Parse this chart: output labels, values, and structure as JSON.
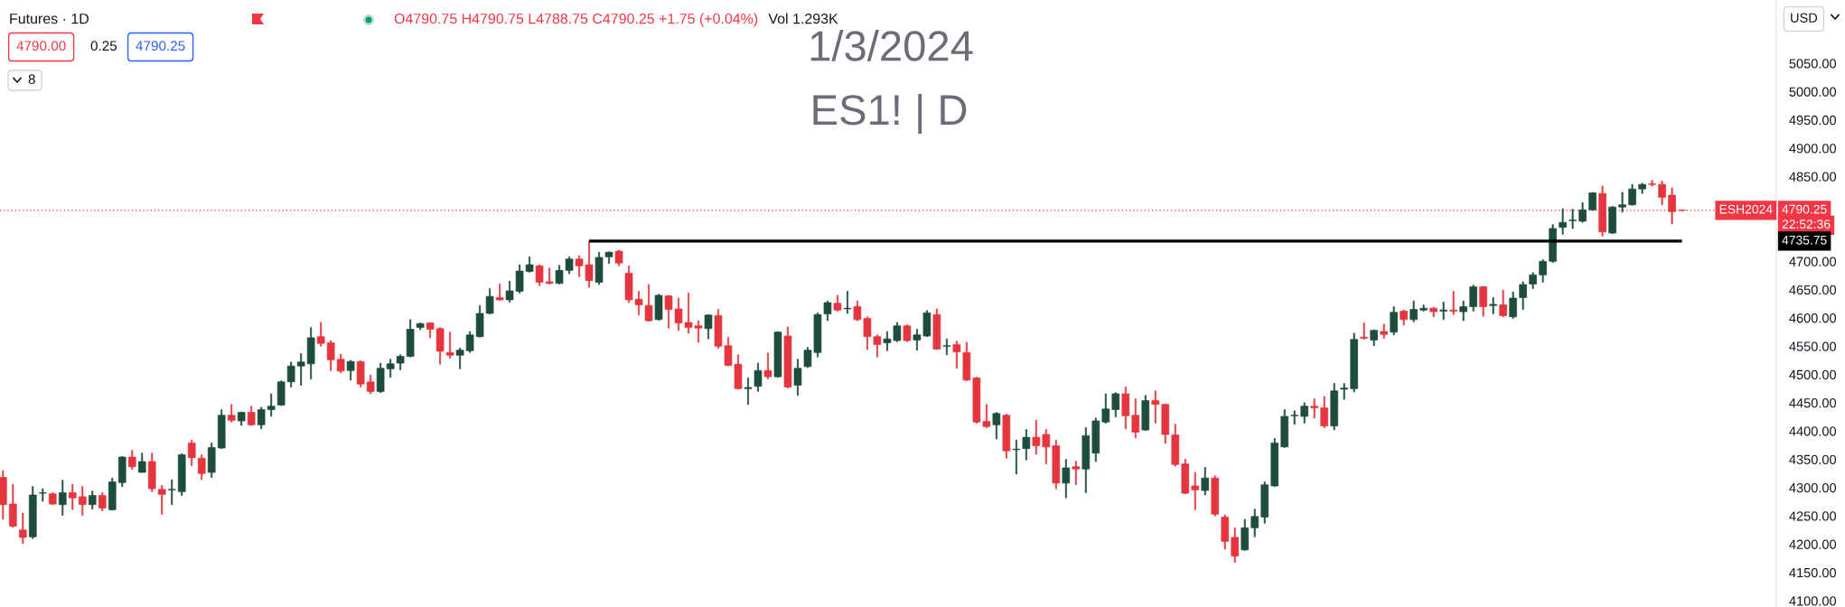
{
  "chart_data": {
    "type": "candlestick",
    "title": "Futures · 1D",
    "annotations": [
      "O4790.75 H4790.75 L4788.75 C4790.25 +1.75 (+0.04%)",
      "Vol 1.293K",
      "4790.00",
      "0.25",
      "4790.25",
      "8",
      "1/3/2024",
      "ES1! | D",
      "USD",
      {
        "text": "ESH2024",
        "y": 4790.25
      },
      "22:52:36",
      "4735.75"
    ],
    "categories": [
      null,
      null,
      null,
      null,
      null,
      null,
      null,
      null,
      null,
      null,
      null,
      null,
      null,
      null,
      null,
      null,
      null,
      null,
      null,
      null,
      null,
      null,
      null,
      null,
      null,
      null,
      null,
      null,
      null,
      null,
      null,
      null,
      null,
      null,
      null,
      null,
      null,
      null,
      null,
      null,
      null,
      null,
      null,
      null,
      null,
      null,
      null,
      null,
      null,
      null,
      null,
      null,
      null,
      null,
      null,
      null,
      null,
      null,
      null,
      null,
      null,
      null,
      null,
      null,
      null,
      null,
      null,
      null,
      null,
      null,
      null,
      null,
      null,
      null,
      null,
      null,
      null,
      null,
      null,
      null,
      null,
      null,
      null,
      null,
      null,
      null,
      null,
      null,
      null,
      null,
      null,
      null,
      null,
      null,
      null,
      null,
      null,
      null,
      null,
      null,
      null,
      null,
      null,
      null,
      null,
      null,
      null,
      null,
      null,
      null,
      null,
      null,
      null,
      null,
      null,
      null,
      null,
      null,
      null,
      null,
      null,
      null,
      null,
      null,
      null,
      null,
      null,
      null,
      null,
      null,
      null,
      null,
      null,
      null,
      null,
      null,
      null,
      null,
      null,
      null,
      null,
      null,
      null,
      null,
      null,
      null,
      null,
      null,
      null,
      null,
      null,
      null,
      null,
      null,
      null,
      null,
      null,
      null,
      null,
      null,
      null,
      null,
      null,
      null,
      null,
      null,
      null,
      null,
      null,
      null
    ],
    "ohlc": [
      [
        4318,
        4330,
        4244,
        4270
      ],
      [
        4271,
        4306,
        4230,
        4232
      ],
      [
        4225,
        4255,
        4201,
        4212
      ],
      [
        4213,
        4302,
        4210,
        4287
      ],
      [
        4290,
        4298,
        4276,
        4291
      ],
      [
        4289,
        4291,
        4270,
        4271
      ],
      [
        4270,
        4313,
        4251,
        4291
      ],
      [
        4291,
        4306,
        4261,
        4282
      ],
      [
        4284,
        4302,
        4251,
        4270
      ],
      [
        4270,
        4294,
        4262,
        4286
      ],
      [
        4286,
        4291,
        4259,
        4264
      ],
      [
        4261,
        4317,
        4260,
        4310
      ],
      [
        4309,
        4355,
        4302,
        4354
      ],
      [
        4354,
        4366,
        4332,
        4337
      ],
      [
        4327,
        4361,
        4327,
        4346
      ],
      [
        4346,
        4361,
        4293,
        4298
      ],
      [
        4297,
        4304,
        4253,
        4288
      ],
      [
        4296,
        4314,
        4270,
        4297
      ],
      [
        4293,
        4360,
        4286,
        4358
      ],
      [
        4379,
        4384,
        4339,
        4353
      ],
      [
        4352,
        4358,
        4314,
        4325
      ],
      [
        4327,
        4379,
        4318,
        4371
      ],
      [
        4370,
        4438,
        4369,
        4428
      ],
      [
        4428,
        4447,
        4416,
        4419
      ],
      [
        4418,
        4434,
        4410,
        4433
      ],
      [
        4433,
        4444,
        4410,
        4411
      ],
      [
        4411,
        4442,
        4404,
        4438
      ],
      [
        4438,
        4466,
        4426,
        4444
      ],
      [
        4446,
        4489,
        4445,
        4487
      ],
      [
        4487,
        4522,
        4478,
        4515
      ],
      [
        4515,
        4537,
        4481,
        4522
      ],
      [
        4519,
        4583,
        4492,
        4565
      ],
      [
        4567,
        4592,
        4550,
        4555
      ],
      [
        4556,
        4560,
        4507,
        4526
      ],
      [
        4527,
        4536,
        4503,
        4506
      ],
      [
        4507,
        4525,
        4490,
        4523
      ],
      [
        4523,
        4524,
        4478,
        4483
      ],
      [
        4487,
        4499,
        4466,
        4470
      ],
      [
        4470,
        4520,
        4468,
        4511
      ],
      [
        4510,
        4527,
        4495,
        4519
      ],
      [
        4520,
        4535,
        4508,
        4532
      ],
      [
        4532,
        4597,
        4531,
        4580
      ],
      [
        4583,
        4591,
        4579,
        4590
      ],
      [
        4591,
        4592,
        4565,
        4580
      ],
      [
        4581,
        4583,
        4518,
        4541
      ],
      [
        4539,
        4575,
        4529,
        4534
      ],
      [
        4534,
        4547,
        4510,
        4543
      ],
      [
        4542,
        4576,
        4539,
        4570
      ],
      [
        4567,
        4622,
        4566,
        4608
      ],
      [
        4608,
        4652,
        4607,
        4638
      ],
      [
        4636,
        4660,
        4631,
        4632
      ],
      [
        4632,
        4665,
        4628,
        4648
      ],
      [
        4647,
        4694,
        4644,
        4683
      ],
      [
        4682,
        4708,
        4681,
        4694
      ],
      [
        4692,
        4694,
        4657,
        4663
      ],
      [
        4664,
        4688,
        4660,
        4661
      ],
      [
        4661,
        4693,
        4660,
        4684
      ],
      [
        4684,
        4708,
        4678,
        4704
      ],
      [
        4704,
        4710,
        4673,
        4692
      ],
      [
        4694,
        4735.75,
        4654,
        4666
      ],
      [
        4663,
        4716,
        4659,
        4707
      ],
      [
        4708,
        4717,
        4696,
        4716
      ],
      [
        4718,
        4720,
        4692,
        4697
      ],
      [
        4679,
        4692,
        4627,
        4632
      ],
      [
        4633,
        4647,
        4605,
        4623
      ],
      [
        4622,
        4659,
        4594,
        4595
      ],
      [
        4597,
        4642,
        4596,
        4640
      ],
      [
        4639,
        4640,
        4582,
        4615
      ],
      [
        4616,
        4635,
        4578,
        4591
      ],
      [
        4592,
        4644,
        4573,
        4583
      ],
      [
        4586,
        4595,
        4557,
        4582
      ],
      [
        4581,
        4606,
        4563,
        4605
      ],
      [
        4604,
        4615,
        4546,
        4550
      ],
      [
        4551,
        4566,
        4515,
        4516
      ],
      [
        4518,
        4535,
        4474,
        4475
      ],
      [
        4475,
        4494,
        4447,
        4477
      ],
      [
        4479,
        4520,
        4470,
        4507
      ],
      [
        4507,
        4538,
        4492,
        4496
      ],
      [
        4496,
        4576,
        4495,
        4575
      ],
      [
        4568,
        4584,
        4476,
        4478
      ],
      [
        4481,
        4527,
        4463,
        4511
      ],
      [
        4514,
        4548,
        4512,
        4543
      ],
      [
        4539,
        4609,
        4531,
        4606
      ],
      [
        4607,
        4630,
        4595,
        4627
      ],
      [
        4626,
        4640,
        4612,
        4614
      ],
      [
        4616,
        4647,
        4608,
        4617
      ],
      [
        4620,
        4630,
        4595,
        4597
      ],
      [
        4599,
        4602,
        4544,
        4567
      ],
      [
        4567,
        4570,
        4531,
        4553
      ],
      [
        4556,
        4576,
        4542,
        4563
      ],
      [
        4560,
        4592,
        4558,
        4586
      ],
      [
        4586,
        4588,
        4558,
        4560
      ],
      [
        4561,
        4580,
        4543,
        4570
      ],
      [
        4568,
        4613,
        4567,
        4609
      ],
      [
        4606,
        4616,
        4544,
        4545
      ],
      [
        4550,
        4563,
        4535,
        4551
      ],
      [
        4553,
        4559,
        4511,
        4540
      ],
      [
        4539,
        4557,
        4489,
        4490
      ],
      [
        4494,
        4495,
        4414,
        4416
      ],
      [
        4417,
        4447,
        4406,
        4408
      ],
      [
        4411,
        4433,
        4386,
        4431
      ],
      [
        4428,
        4430,
        4352,
        4365
      ],
      [
        4367,
        4384,
        4324,
        4368
      ],
      [
        4369,
        4403,
        4349,
        4389
      ],
      [
        4389,
        4419,
        4359,
        4374
      ],
      [
        4394,
        4403,
        4342,
        4372
      ],
      [
        4374,
        4384,
        4298,
        4308
      ],
      [
        4308,
        4350,
        4282,
        4335
      ],
      [
        4337,
        4347,
        4305,
        4333
      ],
      [
        4333,
        4406,
        4291,
        4392
      ],
      [
        4361,
        4423,
        4346,
        4418
      ],
      [
        4416,
        4466,
        4414,
        4439
      ],
      [
        4438,
        4468,
        4425,
        4466
      ],
      [
        4466,
        4478,
        4404,
        4427
      ],
      [
        4428,
        4457,
        4388,
        4398
      ],
      [
        4402,
        4463,
        4401,
        4454
      ],
      [
        4454,
        4471,
        4414,
        4447
      ],
      [
        4447,
        4448,
        4378,
        4394
      ],
      [
        4393,
        4412,
        4338,
        4341
      ],
      [
        4342,
        4350,
        4289,
        4290
      ],
      [
        4303,
        4327,
        4261,
        4296
      ],
      [
        4295,
        4336,
        4287,
        4317
      ],
      [
        4317,
        4321,
        4250,
        4253
      ],
      [
        4248,
        4252,
        4191,
        4205
      ],
      [
        4212,
        4229,
        4168,
        4179
      ],
      [
        4190,
        4244,
        4189,
        4229
      ],
      [
        4229,
        4262,
        4213,
        4249
      ],
      [
        4248,
        4310,
        4237,
        4305
      ],
      [
        4303,
        4387,
        4302,
        4379
      ],
      [
        4372,
        4438,
        4371,
        4426
      ],
      [
        4427,
        4436,
        4412,
        4428
      ],
      [
        4426,
        4450,
        4414,
        4444
      ],
      [
        4444,
        4457,
        4423,
        4441
      ],
      [
        4441,
        4461,
        4406,
        4409
      ],
      [
        4409,
        4484,
        4402,
        4471
      ],
      [
        4474,
        4484,
        4456,
        4476
      ],
      [
        4475,
        4573,
        4469,
        4562
      ],
      [
        4566,
        4591,
        4562,
        4564
      ],
      [
        4561,
        4579,
        4551,
        4578
      ],
      [
        4576,
        4589,
        4564,
        4571
      ],
      [
        4575,
        4620,
        4570,
        4610
      ],
      [
        4612,
        4614,
        4587,
        4597
      ],
      [
        4597,
        4630,
        4593,
        4615
      ],
      [
        4614,
        4623,
        4612,
        4617
      ],
      [
        4617,
        4619,
        4602,
        4611
      ],
      [
        4612,
        4628,
        4597,
        4614
      ],
      [
        4614,
        4647,
        4606,
        4612
      ],
      [
        4611,
        4630,
        4595,
        4620
      ],
      [
        4620,
        4658,
        4612,
        4655
      ],
      [
        4655,
        4656,
        4603,
        4620
      ],
      [
        4622,
        4636,
        4607,
        4624
      ],
      [
        4623,
        4649,
        4602,
        4604
      ],
      [
        4602,
        4646,
        4599,
        4635
      ],
      [
        4636,
        4664,
        4615,
        4659
      ],
      [
        4660,
        4680,
        4652,
        4676
      ],
      [
        4676,
        4703,
        4663,
        4700
      ],
      [
        4700,
        4765,
        4698,
        4758
      ],
      [
        4760,
        4793,
        4748,
        4769
      ],
      [
        4772,
        4792,
        4758,
        4773
      ],
      [
        4771,
        4804,
        4769,
        4791
      ],
      [
        4791,
        4822,
        4790,
        4821
      ],
      [
        4820,
        4833,
        4745,
        4752
      ],
      [
        4750,
        4797,
        4749,
        4796
      ],
      [
        4796,
        4822,
        4787,
        4800
      ],
      [
        4800,
        4836,
        4799,
        4828
      ],
      [
        4828,
        4838,
        4820,
        4836
      ],
      [
        4837,
        4843,
        4833,
        4836
      ],
      [
        4836,
        4842,
        4800,
        4813
      ],
      [
        4817,
        4830,
        4766,
        4788
      ],
      [
        4790.75,
        4790.75,
        4788.75,
        4790.25
      ]
    ],
    "colors": [
      "#e5363f",
      "#e5363f",
      "#e5363f",
      "#1e4d3f",
      "#1e4d3f",
      "#e5363f",
      "#1e4d3f",
      "#e5363f",
      "#e5363f",
      "#1e4d3f",
      "#e5363f",
      "#1e4d3f",
      "#1e4d3f",
      "#e5363f",
      "#1e4d3f",
      "#e5363f",
      "#e5363f",
      "#1e4d3f",
      "#1e4d3f",
      "#e5363f",
      "#e5363f",
      "#1e4d3f",
      "#1e4d3f",
      "#e5363f",
      "#1e4d3f",
      "#e5363f",
      "#1e4d3f",
      "#1e4d3f",
      "#1e4d3f",
      "#1e4d3f",
      "#1e4d3f",
      "#1e4d3f",
      "#e5363f",
      "#e5363f",
      "#e5363f",
      "#1e4d3f",
      "#e5363f",
      "#e5363f",
      "#1e4d3f",
      "#1e4d3f",
      "#1e4d3f",
      "#1e4d3f",
      "#1e4d3f",
      "#e5363f",
      "#e5363f",
      "#e5363f",
      "#1e4d3f",
      "#1e4d3f",
      "#1e4d3f",
      "#1e4d3f",
      "#e5363f",
      "#1e4d3f",
      "#1e4d3f",
      "#1e4d3f",
      "#e5363f",
      "#e5363f",
      "#1e4d3f",
      "#1e4d3f",
      "#e5363f",
      "#e5363f",
      "#1e4d3f",
      "#1e4d3f",
      "#e5363f",
      "#e5363f",
      "#e5363f",
      "#e5363f",
      "#1e4d3f",
      "#e5363f",
      "#e5363f",
      "#e5363f",
      "#e5363f",
      "#1e4d3f",
      "#e5363f",
      "#e5363f",
      "#e5363f",
      "#1e4d3f",
      "#1e4d3f",
      "#e5363f",
      "#1e4d3f",
      "#e5363f",
      "#1e4d3f",
      "#1e4d3f",
      "#1e4d3f",
      "#1e4d3f",
      "#e5363f",
      "#1e4d3f",
      "#e5363f",
      "#e5363f",
      "#e5363f",
      "#1e4d3f",
      "#1e4d3f",
      "#e5363f",
      "#1e4d3f",
      "#1e4d3f",
      "#e5363f",
      "#1e4d3f",
      "#e5363f",
      "#e5363f",
      "#e5363f",
      "#e5363f",
      "#1e4d3f",
      "#e5363f",
      "#1e4d3f",
      "#1e4d3f",
      "#e5363f",
      "#e5363f",
      "#e5363f",
      "#1e4d3f",
      "#e5363f",
      "#1e4d3f",
      "#1e4d3f",
      "#1e4d3f",
      "#1e4d3f",
      "#e5363f",
      "#e5363f",
      "#1e4d3f",
      "#e5363f",
      "#e5363f",
      "#e5363f",
      "#e5363f",
      "#e5363f",
      "#1e4d3f",
      "#e5363f",
      "#e5363f",
      "#e5363f",
      "#1e4d3f",
      "#1e4d3f",
      "#1e4d3f",
      "#1e4d3f",
      "#1e4d3f",
      "#1e4d3f",
      "#1e4d3f",
      "#e5363f",
      "#e5363f",
      "#1e4d3f",
      "#1e4d3f",
      "#1e4d3f",
      "#e5363f",
      "#1e4d3f",
      "#e5363f",
      "#1e4d3f",
      "#e5363f",
      "#1e4d3f",
      "#1e4d3f",
      "#e5363f",
      "#1e4d3f",
      "#e5363f",
      "#1e4d3f",
      "#1e4d3f",
      "#e5363f",
      "#1e4d3f",
      "#e5363f",
      "#1e4d3f",
      "#1e4d3f",
      "#1e4d3f",
      "#1e4d3f",
      "#1e4d3f",
      "#1e4d3f",
      "#1e4d3f",
      "#1e4d3f",
      "#1e4d3f",
      "#e5363f",
      "#1e4d3f",
      "#1e4d3f",
      "#1e4d3f",
      "#1e4d3f",
      "#e5363f",
      "#e5363f",
      "#e5363f",
      "#e5363f"
    ],
    "series": [
      {
        "type": "line",
        "color": "#000000",
        "values": [
          null,
          null,
          null,
          null,
          null,
          null,
          null,
          null,
          null,
          null,
          null,
          null,
          null,
          null,
          null,
          null,
          null,
          null,
          null,
          null,
          null,
          null,
          null,
          null,
          null,
          null,
          null,
          null,
          null,
          null,
          null,
          null,
          null,
          null,
          null,
          null,
          null,
          null,
          null,
          null,
          null,
          null,
          null,
          null,
          null,
          null,
          null,
          null,
          null,
          null,
          null,
          null,
          null,
          null,
          null,
          null,
          null,
          null,
          null,
          4735.75,
          4735.75,
          4735.75,
          4735.75,
          4735.75,
          4735.75,
          4735.75,
          4735.75,
          4735.75,
          4735.75,
          4735.75,
          4735.75,
          4735.75,
          4735.75,
          4735.75,
          4735.75,
          4735.75,
          4735.75,
          4735.75,
          4735.75,
          4735.75,
          4735.75,
          4735.75,
          4735.75,
          4735.75,
          4735.75,
          4735.75,
          4735.75,
          4735.75,
          4735.75,
          4735.75,
          4735.75,
          4735.75,
          4735.75,
          4735.75,
          4735.75,
          4735.75,
          4735.75,
          4735.75,
          4735.75,
          4735.75,
          4735.75,
          4735.75,
          4735.75,
          4735.75,
          4735.75,
          4735.75,
          4735.75,
          4735.75,
          4735.75,
          4735.75,
          4735.75,
          4735.75,
          4735.75,
          4735.75,
          4735.75,
          4735.75,
          4735.75,
          4735.75,
          4735.75,
          4735.75,
          4735.75,
          4735.75,
          4735.75,
          4735.75,
          4735.75,
          4735.75,
          4735.75,
          4735.75,
          4735.75,
          4735.75,
          4735.75,
          4735.75,
          4735.75,
          4735.75,
          4735.75,
          4735.75,
          4735.75,
          4735.75,
          4735.75,
          4735.75,
          4735.75,
          4735.75,
          4735.75,
          4735.75,
          4735.75,
          4735.75,
          4735.75,
          4735.75,
          4735.75,
          4735.75,
          4735.75,
          4735.75,
          4735.75,
          4735.75,
          4735.75,
          4735.75,
          4735.75,
          4735.75,
          4735.75,
          4735.75,
          4735.75,
          4735.75,
          4735.75,
          4735.75,
          4735.75,
          4735.75,
          4735.75,
          4735.75,
          4735.75,
          4735.75
        ]
      }
    ],
    "ref_lines": [
      {
        "axis": "y",
        "value": 4790.25,
        "label": "4790.25",
        "color": "#f23645",
        "line_style": "dotted"
      }
    ],
    "ylim": [
      4089,
      5162
    ],
    "yticks": [
      {
        "value": 4100,
        "label": "4100.00"
      },
      {
        "value": 4150,
        "label": "4150.00"
      },
      {
        "value": 4200,
        "label": "4200.00"
      },
      {
        "value": 4250,
        "label": "4250.00"
      },
      {
        "value": 4300,
        "label": "4300.00"
      },
      {
        "value": 4350,
        "label": "4350.00"
      },
      {
        "value": 4400,
        "label": "4400.00"
      },
      {
        "value": 4450,
        "label": "4450.00"
      },
      {
        "value": 4500,
        "label": "4500.00"
      },
      {
        "value": 4550,
        "label": "4550.00"
      },
      {
        "value": 4600,
        "label": "4600.00"
      },
      {
        "value": 4650,
        "label": "4650.00"
      },
      {
        "value": 4700,
        "label": "4700.00"
      },
      {
        "value": 4850,
        "label": "4850.00"
      },
      {
        "value": 4900,
        "label": "4900.00"
      },
      {
        "value": 4950,
        "label": "4950.00"
      },
      {
        "value": 5000,
        "label": "5000.00"
      },
      {
        "value": 5050,
        "label": "5050.00"
      }
    ],
    "tick_labels": "y"
  }
}
